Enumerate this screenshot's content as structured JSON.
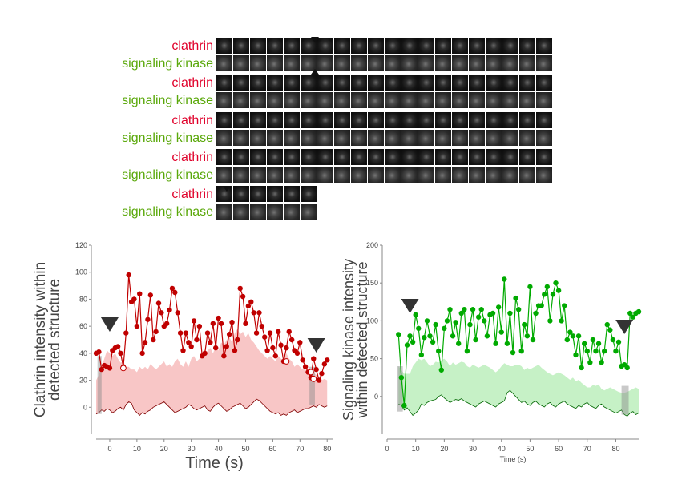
{
  "montage": {
    "rows": [
      {
        "clathrin_label": "clathrin",
        "kinase_label": "signaling kinase",
        "frames": 20
      },
      {
        "clathrin_label": "clathrin",
        "kinase_label": "signaling kinase",
        "frames": 20
      },
      {
        "clathrin_label": "clathrin",
        "kinase_label": "signaling kinase",
        "frames": 20
      },
      {
        "clathrin_label": "clathrin",
        "kinase_label": "signaling kinase",
        "frames": 20
      },
      {
        "clathrin_label": "clathrin",
        "kinase_label": "signaling kinase",
        "frames": 6
      }
    ]
  },
  "chart_data": [
    {
      "type": "line",
      "title": "",
      "xlabel": "Time (s)",
      "ylabel": "Clathrin intensity within detected structure",
      "xlim": [
        -5,
        82
      ],
      "ylim": [
        -20,
        120
      ],
      "xticks": [
        0,
        10,
        20,
        30,
        40,
        50,
        60,
        70,
        80
      ],
      "yticks": [
        0,
        20,
        40,
        60,
        80,
        100,
        120
      ],
      "color": "#c00000",
      "band_color": "#f5b3b3",
      "markers": [
        0,
        76
      ],
      "series": [
        {
          "x": [
            -5,
            -4,
            -3,
            -2,
            -1,
            0,
            1,
            2,
            3,
            4,
            5,
            6,
            7,
            8,
            9,
            10,
            11,
            12,
            13,
            14,
            15,
            16,
            17,
            18,
            19,
            20,
            21,
            22,
            23,
            24,
            25,
            26,
            27,
            28,
            29,
            30,
            31,
            32,
            33,
            34,
            35,
            36,
            37,
            38,
            39,
            40,
            41,
            42,
            43,
            44,
            45,
            46,
            47,
            48,
            49,
            50,
            51,
            52,
            53,
            54,
            55,
            56,
            57,
            58,
            59,
            60,
            61,
            62,
            63,
            64,
            65,
            66,
            67,
            68,
            69,
            70,
            71,
            72,
            73,
            74,
            75,
            76,
            77,
            78,
            79,
            80
          ],
          "y": [
            40,
            41,
            28,
            31,
            30,
            29,
            42,
            44,
            45,
            40,
            30,
            55,
            98,
            78,
            80,
            60,
            84,
            40,
            48,
            65,
            83,
            50,
            56,
            77,
            70,
            60,
            62,
            72,
            88,
            85,
            70,
            55,
            42,
            55,
            48,
            45,
            64,
            50,
            60,
            38,
            40,
            55,
            48,
            62,
            44,
            66,
            62,
            38,
            45,
            54,
            63,
            42,
            50,
            88,
            82,
            62,
            75,
            78,
            70,
            55,
            70,
            60,
            52,
            42,
            55,
            44,
            38,
            56,
            46,
            34,
            44,
            56,
            50,
            42,
            40,
            48,
            35,
            30,
            26,
            22,
            36,
            28,
            20,
            25,
            32,
            35
          ],
          "open_points": [
            [
              5,
              29
            ],
            [
              65,
              34
            ],
            [
              74,
              26
            ],
            [
              75,
              21
            ]
          ]
        }
      ],
      "band_upper": [
        20,
        24,
        30,
        36,
        42,
        40,
        38,
        40,
        36,
        33,
        34,
        30,
        30,
        28,
        28,
        26,
        30,
        28,
        30,
        28,
        32,
        30,
        28,
        30,
        32,
        34,
        30,
        32,
        30,
        34,
        36,
        32,
        30,
        34,
        30,
        36,
        38,
        34,
        36,
        40,
        38,
        42,
        44,
        40,
        45,
        42,
        48,
        46,
        50,
        52,
        48,
        55,
        58,
        54,
        56,
        52,
        55,
        50,
        48,
        45,
        42,
        40,
        38,
        36,
        38,
        36,
        34,
        38,
        36,
        35,
        40,
        36,
        34,
        30,
        32,
        30,
        28,
        28,
        26,
        25,
        26,
        24,
        22,
        20,
        21,
        20
      ],
      "band_lower": [
        -5,
        -4,
        -2,
        -3,
        -1,
        -2,
        -4,
        -3,
        -1,
        0,
        -2,
        2,
        4,
        3,
        -2,
        -4,
        -6,
        -4,
        -5,
        -3,
        -2,
        0,
        1,
        2,
        3,
        4,
        2,
        0,
        -2,
        -4,
        -3,
        -2,
        -1,
        0,
        2,
        1,
        -1,
        -2,
        -1,
        0,
        1,
        -2,
        -3,
        0,
        2,
        3,
        1,
        -1,
        -3,
        -2,
        0,
        1,
        2,
        3,
        1,
        -1,
        0,
        2,
        4,
        6,
        5,
        3,
        1,
        -1,
        -3,
        -4,
        -5,
        -4,
        -6,
        -5,
        -6,
        -4,
        -3,
        -2,
        -4,
        -3,
        -2,
        -1,
        -1,
        0,
        1,
        0,
        2,
        1,
        0,
        1
      ]
    },
    {
      "type": "line",
      "title": "",
      "xlabel": "Time (s)",
      "ylabel": "Signaling kinase intensity within detected structure",
      "xlim": [
        0,
        88
      ],
      "ylim": [
        -50,
        200
      ],
      "xticks": [
        0,
        10,
        20,
        30,
        40,
        50,
        60,
        70,
        80
      ],
      "yticks": [
        0,
        50,
        100,
        150,
        200
      ],
      "color": "#00aa00",
      "band_color": "#b3ecb3",
      "markers": [
        8,
        83
      ],
      "series": [
        {
          "x": [
            4,
            5,
            6,
            7,
            8,
            9,
            10,
            11,
            12,
            13,
            14,
            15,
            16,
            17,
            18,
            19,
            20,
            21,
            22,
            23,
            24,
            25,
            26,
            27,
            28,
            29,
            30,
            31,
            32,
            33,
            34,
            35,
            36,
            37,
            38,
            39,
            40,
            41,
            42,
            43,
            44,
            45,
            46,
            47,
            48,
            49,
            50,
            51,
            52,
            53,
            54,
            55,
            56,
            57,
            58,
            59,
            60,
            61,
            62,
            63,
            64,
            65,
            66,
            67,
            68,
            69,
            70,
            71,
            72,
            73,
            74,
            75,
            76,
            77,
            78,
            79,
            80,
            81,
            82,
            83,
            84,
            85,
            86,
            87,
            88
          ],
          "y": [
            82,
            25,
            -12,
            68,
            80,
            72,
            108,
            90,
            55,
            78,
            100,
            80,
            72,
            95,
            60,
            35,
            90,
            100,
            115,
            80,
            98,
            70,
            110,
            115,
            60,
            95,
            115,
            75,
            105,
            115,
            100,
            80,
            108,
            110,
            70,
            118,
            85,
            155,
            70,
            110,
            58,
            130,
            115,
            60,
            95,
            80,
            145,
            75,
            110,
            120,
            120,
            135,
            145,
            100,
            135,
            150,
            140,
            100,
            120,
            75,
            85,
            80,
            55,
            80,
            38,
            70,
            60,
            45,
            75,
            60,
            70,
            45,
            60,
            95,
            88,
            75,
            60,
            72,
            40,
            42,
            38,
            110,
            105,
            110,
            112
          ],
          "open_points": []
        }
      ],
      "band_upper": [
        40,
        35,
        30,
        30,
        30,
        40,
        45,
        50,
        48,
        50,
        45,
        40,
        42,
        46,
        45,
        48,
        50,
        46,
        40,
        45,
        42,
        44,
        46,
        45,
        40,
        38,
        42,
        40,
        38,
        40,
        42,
        40,
        38,
        35,
        32,
        35,
        40,
        44,
        42,
        40,
        40,
        42,
        42,
        40,
        35,
        38,
        36,
        38,
        40,
        42,
        38,
        35,
        32,
        30,
        28,
        30,
        32,
        30,
        28,
        25,
        22,
        25,
        20,
        22,
        18,
        15,
        12,
        12,
        15,
        14,
        16,
        10,
        8,
        10,
        12,
        10,
        8,
        6,
        5,
        5,
        6,
        8,
        10,
        12,
        10
      ],
      "band_lower": [
        -10,
        -12,
        -18,
        -15,
        -20,
        -25,
        -22,
        -18,
        -10,
        -12,
        -8,
        -6,
        -5,
        -4,
        0,
        2,
        -2,
        -5,
        -8,
        -6,
        -4,
        -5,
        -3,
        -6,
        -8,
        -10,
        -12,
        -14,
        -10,
        -8,
        -6,
        -8,
        -10,
        -12,
        -14,
        -10,
        -8,
        -6,
        5,
        8,
        4,
        0,
        -4,
        -8,
        -6,
        -10,
        -12,
        -8,
        -6,
        -10,
        -12,
        -14,
        -10,
        -8,
        -12,
        -14,
        -10,
        -8,
        -6,
        -10,
        -12,
        -14,
        -16,
        -12,
        -14,
        -10,
        -8,
        -12,
        -14,
        -16,
        -12,
        -10,
        -14,
        -16,
        -18,
        -20,
        -22,
        -20,
        -18,
        -24,
        -26,
        -22,
        -20,
        -24,
        -22
      ]
    }
  ]
}
